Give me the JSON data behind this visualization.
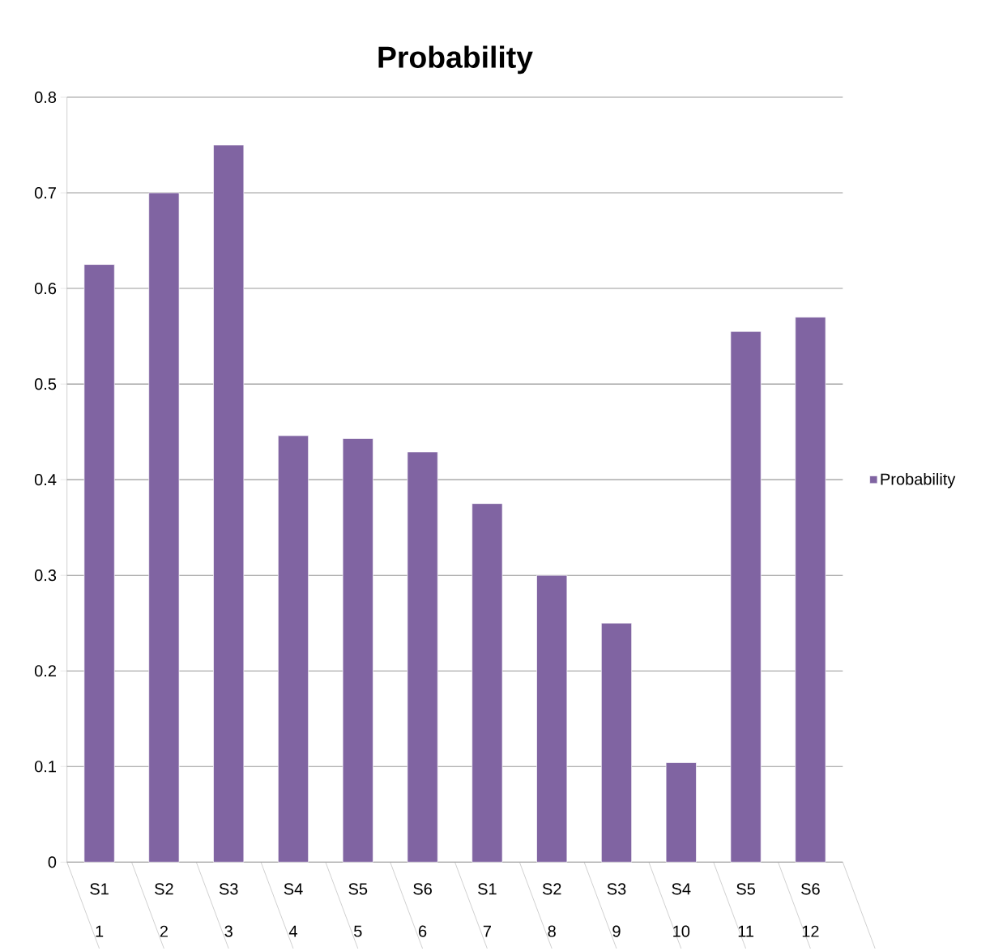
{
  "chart_data": {
    "type": "bar",
    "title": "Probability",
    "categories": [
      "S1",
      "S2",
      "S3",
      "S4",
      "S5",
      "S6",
      "S1",
      "S2",
      "S3",
      "S4",
      "S5",
      "S6"
    ],
    "annotations": [
      "1",
      "2",
      "3",
      "4",
      "5",
      "6",
      "7",
      "8",
      "9",
      "10",
      "11",
      "12"
    ],
    "series": [
      {
        "name": "Probability",
        "color": "#8064a2",
        "values": [
          0.625,
          0.7,
          0.75,
          0.446,
          0.443,
          0.429,
          0.375,
          0.3,
          0.25,
          0.104,
          0.555,
          0.57
        ]
      }
    ],
    "ylim": [
      0,
      0.8
    ],
    "yticks": [
      0,
      0.1,
      0.2,
      0.3,
      0.4,
      0.5,
      0.6,
      0.7,
      0.8
    ],
    "grid": "y",
    "legend": "right"
  }
}
